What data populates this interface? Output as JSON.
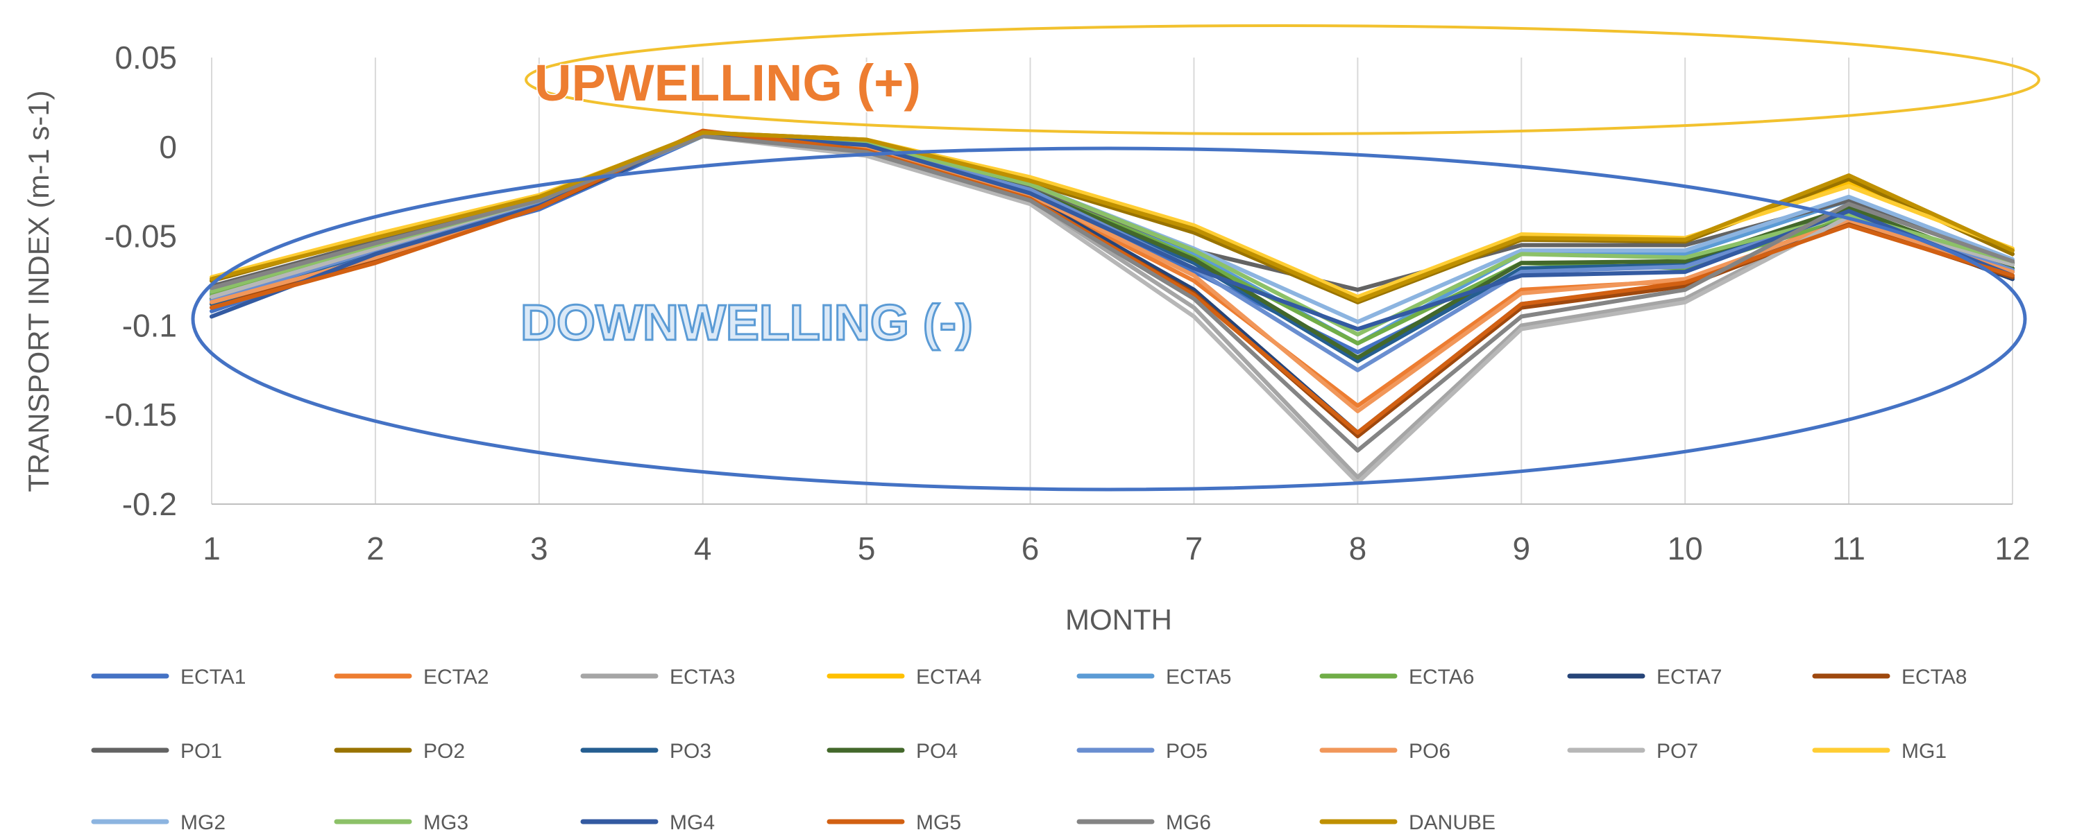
{
  "chart_data": {
    "type": "line",
    "xlabel": "MONTH",
    "ylabel": "TRANSPORT INDEX (m-1 s-1)",
    "ylim": [
      -0.2,
      0.05
    ],
    "xlim": [
      1,
      12
    ],
    "grid": "vertical",
    "legend_position": "bottom",
    "y_ticks": [
      {
        "value": 0.05,
        "label": "0.05"
      },
      {
        "value": 0,
        "label": "0"
      },
      {
        "value": -0.05,
        "label": "-0.05"
      },
      {
        "value": -0.1,
        "label": "-0.1"
      },
      {
        "value": -0.15,
        "label": "-0.15"
      },
      {
        "value": -0.2,
        "label": "-0.2"
      }
    ],
    "x": [
      1,
      2,
      3,
      4,
      5,
      6,
      7,
      8,
      9,
      10,
      11,
      12
    ],
    "x_tick_labels": [
      "1",
      "2",
      "3",
      "4",
      "5",
      "6",
      "7",
      "8",
      "9",
      "10",
      "11",
      "12"
    ],
    "annotations": [
      {
        "text": "UPWELLING (+)",
        "region": "top",
        "ellipse_color": "#f2c12e"
      },
      {
        "text": "DOWNWELLING (-)",
        "region": "bottom",
        "ellipse_color": "#4472c4"
      }
    ],
    "series": [
      {
        "name": "ECTA1",
        "color": "#4472c4",
        "values": [
          -0.092,
          -0.06,
          -0.035,
          0.006,
          0.0,
          -0.025,
          -0.07,
          -0.115,
          -0.07,
          -0.065,
          -0.035,
          -0.07
        ]
      },
      {
        "name": "ECTA2",
        "color": "#ed7d31",
        "values": [
          -0.088,
          -0.063,
          -0.033,
          0.008,
          -0.002,
          -0.028,
          -0.075,
          -0.145,
          -0.08,
          -0.075,
          -0.04,
          -0.07
        ]
      },
      {
        "name": "ECTA3",
        "color": "#a5a5a5",
        "values": [
          -0.085,
          -0.058,
          -0.03,
          0.006,
          -0.004,
          -0.03,
          -0.09,
          -0.185,
          -0.1,
          -0.085,
          -0.038,
          -0.065
        ]
      },
      {
        "name": "ECTA4",
        "color": "#ffc000",
        "values": [
          -0.075,
          -0.05,
          -0.028,
          0.007,
          0.003,
          -0.018,
          -0.045,
          -0.085,
          -0.05,
          -0.052,
          -0.02,
          -0.058
        ]
      },
      {
        "name": "ECTA5",
        "color": "#5b9bd5",
        "values": [
          -0.082,
          -0.057,
          -0.03,
          0.006,
          0.001,
          -0.022,
          -0.06,
          -0.11,
          -0.06,
          -0.06,
          -0.03,
          -0.064
        ]
      },
      {
        "name": "ECTA6",
        "color": "#70ad47",
        "values": [
          -0.083,
          -0.057,
          -0.031,
          0.006,
          0.002,
          -0.022,
          -0.062,
          -0.11,
          -0.065,
          -0.068,
          -0.04,
          -0.066
        ]
      },
      {
        "name": "ECTA7",
        "color": "#264478",
        "values": [
          -0.09,
          -0.062,
          -0.034,
          0.007,
          0.001,
          -0.028,
          -0.08,
          -0.16,
          -0.088,
          -0.078,
          -0.04,
          -0.074
        ]
      },
      {
        "name": "ECTA8",
        "color": "#9e480e",
        "values": [
          -0.088,
          -0.063,
          -0.034,
          0.008,
          -0.002,
          -0.03,
          -0.082,
          -0.162,
          -0.09,
          -0.078,
          -0.043,
          -0.073
        ]
      },
      {
        "name": "PO1",
        "color": "#636363",
        "values": [
          -0.078,
          -0.053,
          -0.03,
          0.007,
          0.003,
          -0.022,
          -0.058,
          -0.08,
          -0.055,
          -0.055,
          -0.03,
          -0.065
        ]
      },
      {
        "name": "PO2",
        "color": "#997300",
        "values": [
          -0.075,
          -0.05,
          -0.029,
          0.008,
          0.004,
          -0.02,
          -0.048,
          -0.087,
          -0.052,
          -0.053,
          -0.018,
          -0.06
        ]
      },
      {
        "name": "PO3",
        "color": "#255e91",
        "values": [
          -0.088,
          -0.058,
          -0.032,
          0.007,
          0.002,
          -0.025,
          -0.065,
          -0.12,
          -0.068,
          -0.066,
          -0.036,
          -0.07
        ]
      },
      {
        "name": "PO4",
        "color": "#43682b",
        "values": [
          -0.085,
          -0.056,
          -0.031,
          0.007,
          0.003,
          -0.024,
          -0.063,
          -0.118,
          -0.065,
          -0.064,
          -0.034,
          -0.068
        ]
      },
      {
        "name": "PO5",
        "color": "#698ed0",
        "values": [
          -0.086,
          -0.058,
          -0.032,
          0.006,
          0.001,
          -0.024,
          -0.068,
          -0.125,
          -0.07,
          -0.067,
          -0.037,
          -0.069
        ]
      },
      {
        "name": "PO6",
        "color": "#f1975a",
        "values": [
          -0.087,
          -0.062,
          -0.033,
          0.009,
          -0.001,
          -0.027,
          -0.072,
          -0.148,
          -0.082,
          -0.074,
          -0.041,
          -0.07
        ]
      },
      {
        "name": "PO7",
        "color": "#b7b7b7",
        "values": [
          -0.084,
          -0.057,
          -0.03,
          0.006,
          -0.005,
          -0.032,
          -0.095,
          -0.188,
          -0.102,
          -0.087,
          -0.039,
          -0.066
        ]
      },
      {
        "name": "MG1",
        "color": "#ffcd33",
        "values": [
          -0.073,
          -0.049,
          -0.027,
          0.007,
          0.004,
          -0.017,
          -0.044,
          -0.084,
          -0.049,
          -0.051,
          -0.022,
          -0.057
        ]
      },
      {
        "name": "MG2",
        "color": "#8cb4e0",
        "values": [
          -0.08,
          -0.055,
          -0.03,
          0.006,
          0.002,
          -0.021,
          -0.057,
          -0.098,
          -0.058,
          -0.058,
          -0.028,
          -0.063
        ]
      },
      {
        "name": "MG3",
        "color": "#8cc168",
        "values": [
          -0.081,
          -0.055,
          -0.03,
          0.006,
          0.002,
          -0.021,
          -0.058,
          -0.105,
          -0.06,
          -0.062,
          -0.038,
          -0.064
        ]
      },
      {
        "name": "MG4",
        "color": "#335aa1",
        "values": [
          -0.095,
          -0.06,
          -0.033,
          0.007,
          0.001,
          -0.026,
          -0.068,
          -0.102,
          -0.072,
          -0.07,
          -0.036,
          -0.072
        ]
      },
      {
        "name": "MG5",
        "color": "#d26012",
        "values": [
          -0.09,
          -0.065,
          -0.034,
          0.009,
          -0.002,
          -0.029,
          -0.083,
          -0.16,
          -0.088,
          -0.076,
          -0.044,
          -0.072
        ]
      },
      {
        "name": "MG6",
        "color": "#848484",
        "values": [
          -0.079,
          -0.054,
          -0.03,
          0.006,
          -0.003,
          -0.03,
          -0.085,
          -0.17,
          -0.095,
          -0.08,
          -0.032,
          -0.064
        ]
      },
      {
        "name": "DANUBE",
        "color": "#bf9000",
        "values": [
          -0.074,
          -0.051,
          -0.028,
          0.008,
          0.004,
          -0.019,
          -0.046,
          -0.086,
          -0.051,
          -0.052,
          -0.016,
          -0.058
        ]
      }
    ]
  }
}
